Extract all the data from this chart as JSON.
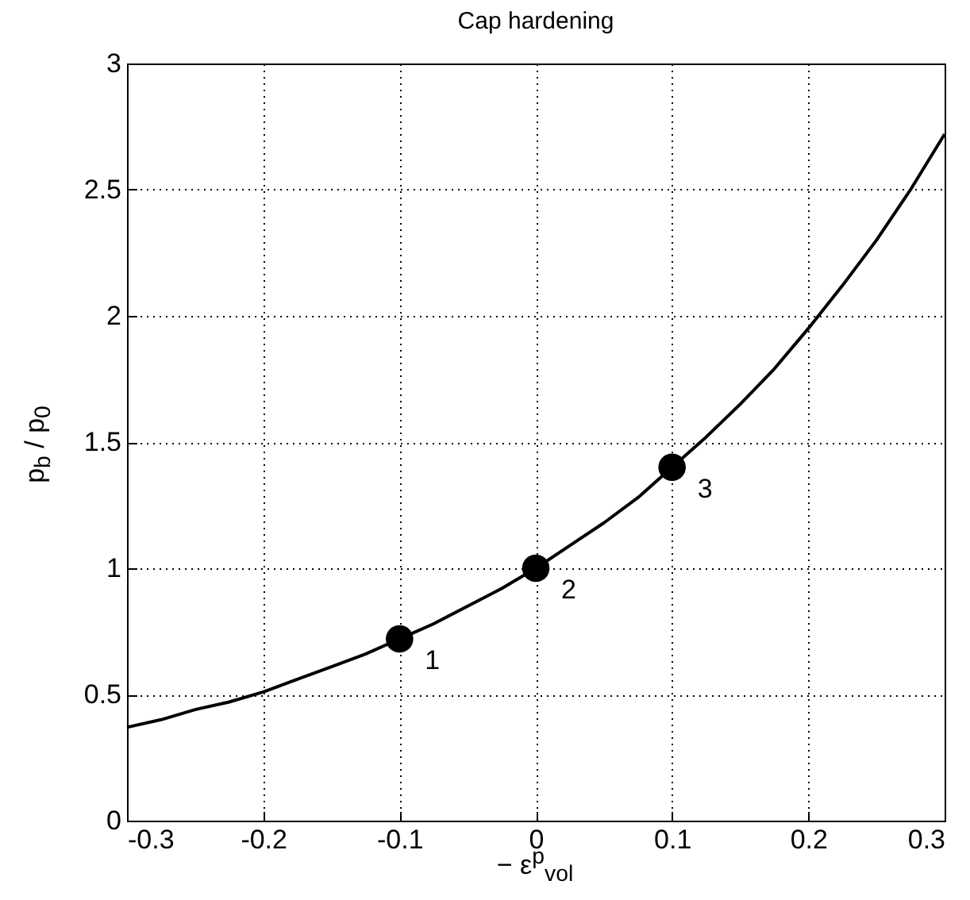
{
  "chart_data": {
    "type": "line",
    "title": "Cap hardening",
    "xlabel": "− ε$^{p}$$_{vol}$",
    "ylabel": "p$_{b}$ / p$_{0}$",
    "xlim": [
      -0.3,
      0.3
    ],
    "xticks": [
      -0.3,
      -0.2,
      -0.1,
      0,
      0.1,
      0.2,
      0.3
    ],
    "ylim": [
      0,
      3
    ],
    "yticks": [
      0,
      0.5,
      1,
      1.5,
      2,
      2.5,
      3
    ],
    "grid": true,
    "series": [
      {
        "color": "#000000",
        "x": [
          -0.3,
          -0.275,
          -0.25,
          -0.225,
          -0.2,
          -0.175,
          -0.15,
          -0.125,
          -0.1,
          -0.075,
          -0.05,
          -0.025,
          0,
          0.025,
          0.05,
          0.075,
          0.1,
          0.125,
          0.15,
          0.175,
          0.2,
          0.225,
          0.25,
          0.275,
          0.3
        ],
        "values": [
          0.37,
          0.4,
          0.44,
          0.47,
          0.51,
          0.56,
          0.61,
          0.66,
          0.72,
          0.78,
          0.85,
          0.92,
          1,
          1.09,
          1.18,
          1.28,
          1.4,
          1.52,
          1.65,
          1.79,
          1.95,
          2.12,
          2.3,
          2.5,
          2.72
        ]
      },
      {
        "type": "scatter",
        "color": "#000000",
        "marker": "circle",
        "x": [
          -0.1,
          0,
          0.1
        ],
        "values": [
          0.72,
          1,
          1.4
        ]
      }
    ],
    "annotations": [
      {
        "text": "1",
        "x": -0.1,
        "y": 0.72
      },
      {
        "text": "2",
        "x": 0,
        "y": 1
      },
      {
        "text": "3",
        "x": 0.1,
        "y": 1.4
      }
    ]
  }
}
